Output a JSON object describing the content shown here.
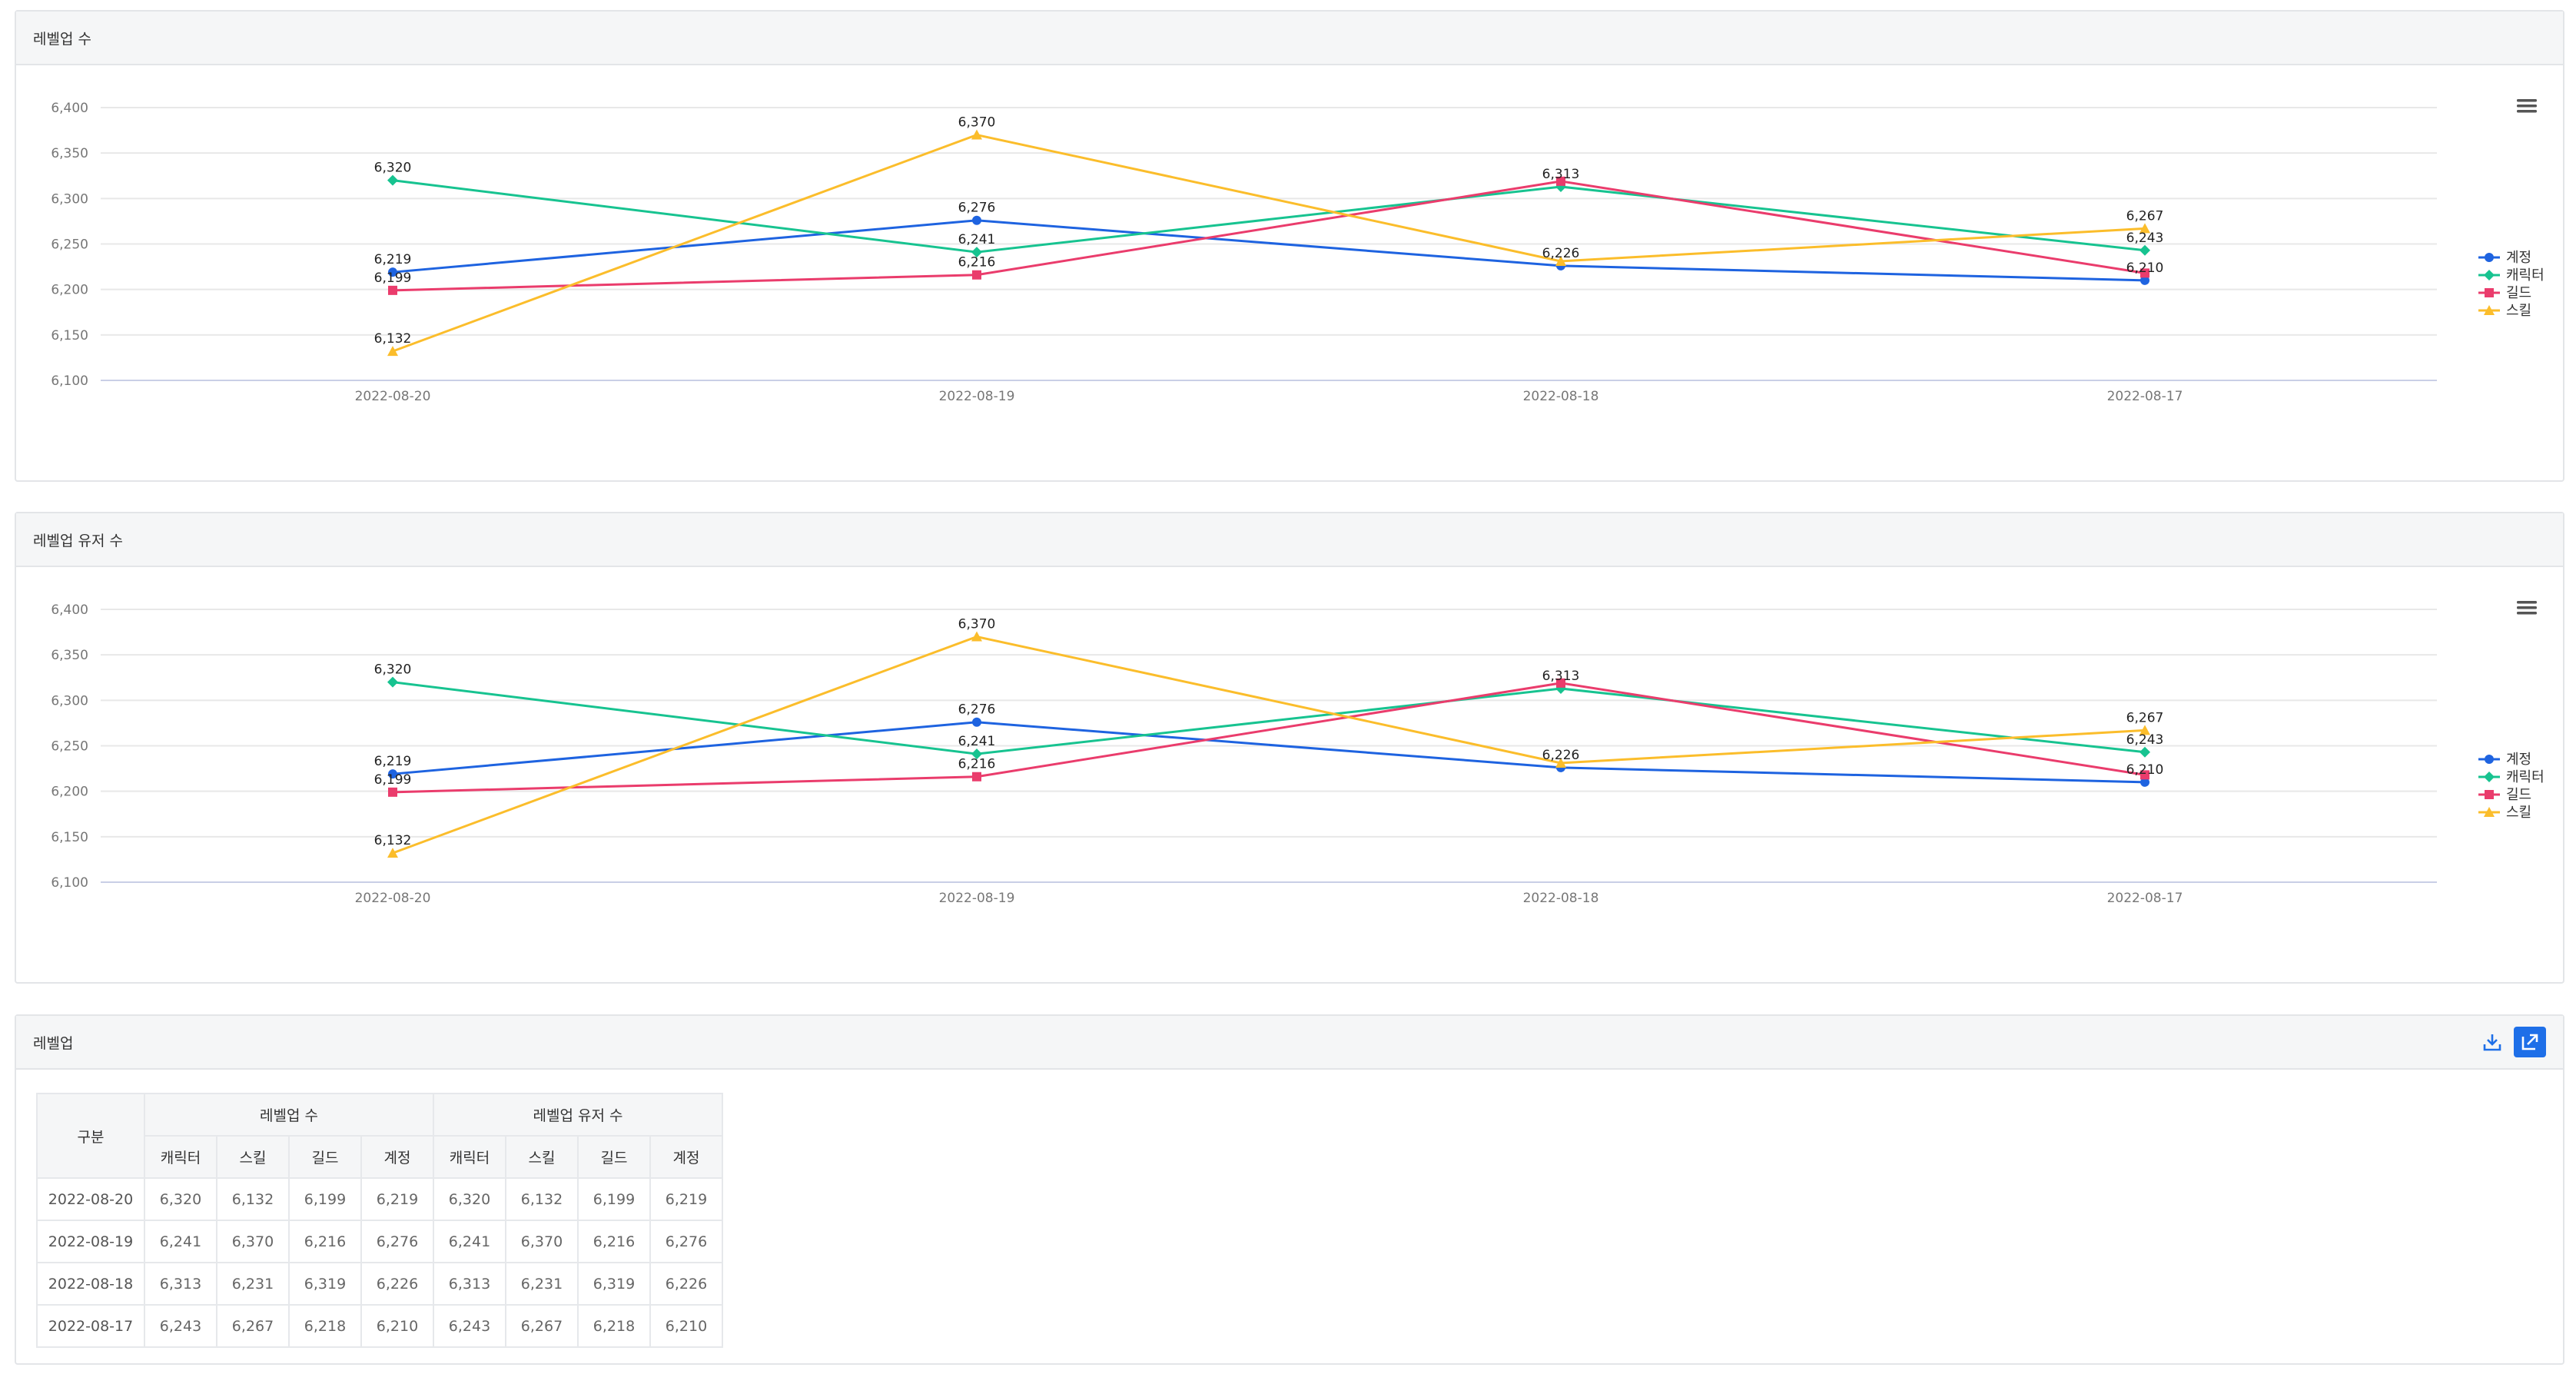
{
  "panels": [
    {
      "title": "레벨업 수",
      "menu_icon": "hamburger-menu-icon",
      "chart_data": {
        "type": "line",
        "categories": [
          "2022-08-20",
          "2022-08-19",
          "2022-08-18",
          "2022-08-17"
        ],
        "ylim": [
          6100,
          6400
        ],
        "yticks": [
          "6,400",
          "6,350",
          "6,300",
          "6,250",
          "6,200",
          "6,150",
          "6,100"
        ],
        "legend_position": "right",
        "series": [
          {
            "name": "계정",
            "values": [
              6219,
              6276,
              6226,
              6210
            ],
            "color": "#1e63e0",
            "marker": "circle"
          },
          {
            "name": "캐릭터",
            "values": [
              6320,
              6241,
              6313,
              6243
            ],
            "color": "#17c390",
            "marker": "diamond"
          },
          {
            "name": "길드",
            "values": [
              6199,
              6216,
              6319,
              6218
            ],
            "color": "#ea3c6c",
            "marker": "square"
          },
          {
            "name": "스킬",
            "values": [
              6132,
              6370,
              6231,
              6267
            ],
            "color": "#fbbd2b",
            "marker": "triangle"
          }
        ],
        "data_labels": [
          {
            "category": "2022-08-20",
            "value": 6320,
            "text": "6,320"
          },
          {
            "category": "2022-08-20",
            "value": 6219,
            "text": "6,219"
          },
          {
            "category": "2022-08-20",
            "value": 6199,
            "text": "6,199"
          },
          {
            "category": "2022-08-20",
            "value": 6132,
            "text": "6,132"
          },
          {
            "category": "2022-08-19",
            "value": 6370,
            "text": "6,370"
          },
          {
            "category": "2022-08-19",
            "value": 6276,
            "text": "6,276"
          },
          {
            "category": "2022-08-19",
            "value": 6241,
            "text": "6,241"
          },
          {
            "category": "2022-08-19",
            "value": 6216,
            "text": "6,216"
          },
          {
            "category": "2022-08-18",
            "value": 6313,
            "text": "6,313"
          },
          {
            "category": "2022-08-18",
            "value": 6226,
            "text": "6,226"
          },
          {
            "category": "2022-08-17",
            "value": 6267,
            "text": "6,267"
          },
          {
            "category": "2022-08-17",
            "value": 6243,
            "text": "6,243"
          },
          {
            "category": "2022-08-17",
            "value": 6210,
            "text": "6,210"
          }
        ]
      }
    },
    {
      "title": "레벨업 유저 수",
      "menu_icon": "hamburger-menu-icon",
      "chart_data": {
        "type": "line",
        "categories": [
          "2022-08-20",
          "2022-08-19",
          "2022-08-18",
          "2022-08-17"
        ],
        "ylim": [
          6100,
          6400
        ],
        "yticks": [
          "6,400",
          "6,350",
          "6,300",
          "6,250",
          "6,200",
          "6,150",
          "6,100"
        ],
        "legend_position": "right",
        "series": [
          {
            "name": "계정",
            "values": [
              6219,
              6276,
              6226,
              6210
            ],
            "color": "#1e63e0",
            "marker": "circle"
          },
          {
            "name": "캐릭터",
            "values": [
              6320,
              6241,
              6313,
              6243
            ],
            "color": "#17c390",
            "marker": "diamond"
          },
          {
            "name": "길드",
            "values": [
              6199,
              6216,
              6319,
              6218
            ],
            "color": "#ea3c6c",
            "marker": "square"
          },
          {
            "name": "스킬",
            "values": [
              6132,
              6370,
              6231,
              6267
            ],
            "color": "#fbbd2b",
            "marker": "triangle"
          }
        ],
        "data_labels": [
          {
            "category": "2022-08-20",
            "value": 6320,
            "text": "6,320"
          },
          {
            "category": "2022-08-20",
            "value": 6219,
            "text": "6,219"
          },
          {
            "category": "2022-08-20",
            "value": 6199,
            "text": "6,199"
          },
          {
            "category": "2022-08-20",
            "value": 6132,
            "text": "6,132"
          },
          {
            "category": "2022-08-19",
            "value": 6370,
            "text": "6,370"
          },
          {
            "category": "2022-08-19",
            "value": 6276,
            "text": "6,276"
          },
          {
            "category": "2022-08-19",
            "value": 6241,
            "text": "6,241"
          },
          {
            "category": "2022-08-19",
            "value": 6216,
            "text": "6,216"
          },
          {
            "category": "2022-08-18",
            "value": 6313,
            "text": "6,313"
          },
          {
            "category": "2022-08-18",
            "value": 6226,
            "text": "6,226"
          },
          {
            "category": "2022-08-17",
            "value": 6267,
            "text": "6,267"
          },
          {
            "category": "2022-08-17",
            "value": 6243,
            "text": "6,243"
          },
          {
            "category": "2022-08-17",
            "value": 6210,
            "text": "6,210"
          }
        ]
      }
    }
  ],
  "table_panel": {
    "title": "레벨업",
    "download_icon": "download-icon",
    "export_icon": "export-icon",
    "header": {
      "row_label": "구분",
      "group1": "레벨업 수",
      "group2": "레벨업 유저 수",
      "columns": [
        "캐릭터",
        "스킬",
        "길드",
        "계정",
        "캐릭터",
        "스킬",
        "길드",
        "계정"
      ]
    },
    "rows": [
      {
        "date": "2022-08-20",
        "cells": [
          "6,320",
          "6,132",
          "6,199",
          "6,219",
          "6,320",
          "6,132",
          "6,199",
          "6,219"
        ]
      },
      {
        "date": "2022-08-19",
        "cells": [
          "6,241",
          "6,370",
          "6,216",
          "6,276",
          "6,241",
          "6,370",
          "6,216",
          "6,276"
        ]
      },
      {
        "date": "2022-08-18",
        "cells": [
          "6,313",
          "6,231",
          "6,319",
          "6,226",
          "6,313",
          "6,231",
          "6,319",
          "6,226"
        ]
      },
      {
        "date": "2022-08-17",
        "cells": [
          "6,243",
          "6,267",
          "6,218",
          "6,210",
          "6,243",
          "6,267",
          "6,218",
          "6,210"
        ]
      }
    ]
  }
}
